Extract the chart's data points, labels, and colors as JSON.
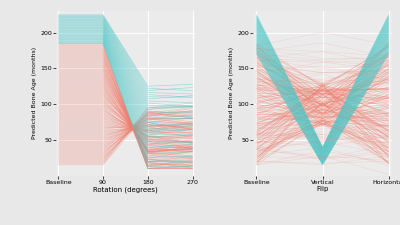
{
  "background_color": "#e8e8e8",
  "panel_bg": "#ebebeb",
  "coral_color": "#f08070",
  "teal_color": "#50c8c8",
  "grid_color": "#ffffff",
  "ylabel": "Predicted Bone Age (months)",
  "xlabel_left": "Rotation (degrees)",
  "xlabel_right": "Flip",
  "xticks_left": [
    "Baseline",
    "90",
    "180",
    "270"
  ],
  "xticks_right": [
    "Baseline",
    "Vertical",
    "Horizontal"
  ],
  "yticks": [
    50,
    100,
    150,
    200
  ],
  "ylim": [
    0,
    230
  ],
  "line_alpha": 0.45,
  "line_width": 0.4
}
